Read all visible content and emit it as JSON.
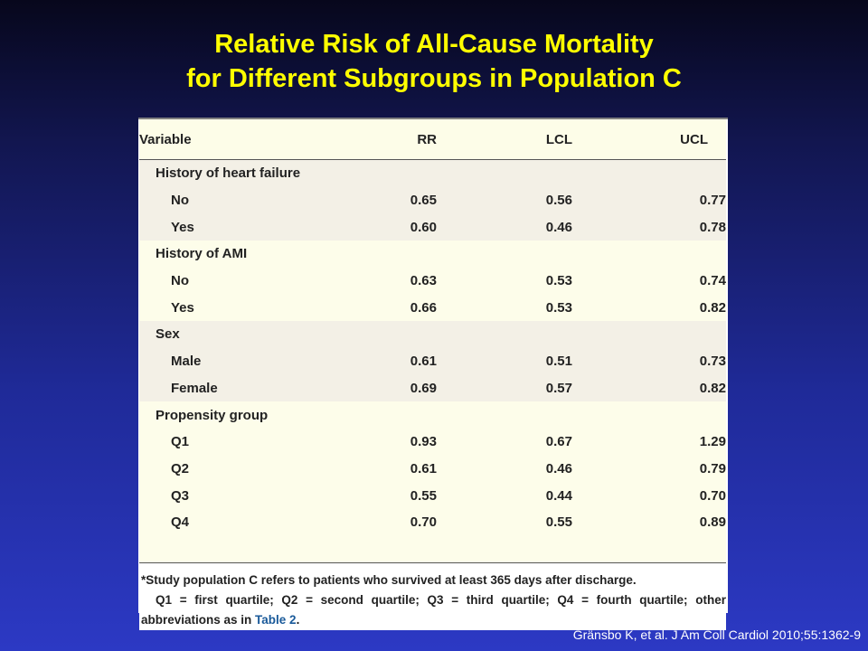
{
  "slide": {
    "title_line1": "Relative Risk of All-Cause Mortality",
    "title_line2": "for Different Subgroups in Population C",
    "citation": "Gränsbo K, et al. J Am Coll Cardiol 2010;55:1362-9"
  },
  "table": {
    "headers": [
      "Variable",
      "RR",
      "LCL",
      "UCL"
    ],
    "groups": [
      {
        "label": "History of heart failure",
        "rows": [
          {
            "label": "No",
            "rr": "0.65",
            "lcl": "0.56",
            "ucl": "0.77"
          },
          {
            "label": "Yes",
            "rr": "0.60",
            "lcl": "0.46",
            "ucl": "0.78"
          }
        ]
      },
      {
        "label": "History of AMI",
        "rows": [
          {
            "label": "No",
            "rr": "0.63",
            "lcl": "0.53",
            "ucl": "0.74"
          },
          {
            "label": "Yes",
            "rr": "0.66",
            "lcl": "0.53",
            "ucl": "0.82"
          }
        ]
      },
      {
        "label": "Sex",
        "rows": [
          {
            "label": "Male",
            "rr": "0.61",
            "lcl": "0.51",
            "ucl": "0.73"
          },
          {
            "label": "Female",
            "rr": "0.69",
            "lcl": "0.57",
            "ucl": "0.82"
          }
        ]
      },
      {
        "label": "Propensity group",
        "rows": [
          {
            "label": "Q1",
            "rr": "0.93",
            "lcl": "0.67",
            "ucl": "1.29"
          },
          {
            "label": "Q2",
            "rr": "0.61",
            "lcl": "0.46",
            "ucl": "0.79"
          },
          {
            "label": "Q3",
            "rr": "0.55",
            "lcl": "0.44",
            "ucl": "0.70"
          },
          {
            "label": "Q4",
            "rr": "0.70",
            "lcl": "0.55",
            "ucl": "0.89"
          }
        ]
      }
    ],
    "footnote_line1": "*Study population C refers to patients who survived at least 365 days after discharge.",
    "footnote_line2": "Q1 = first quartile; Q2 = second quartile; Q3 = third quartile; Q4 = fourth quartile; other",
    "footnote_line3_prefix": "abbreviations as in ",
    "footnote_link": "Table 2",
    "footnote_line3_suffix": "."
  },
  "colors": {
    "title": "#ffff00",
    "band_a": "#f3f0e6",
    "band_b": "#fdfdea",
    "link": "#1a5a9a"
  }
}
